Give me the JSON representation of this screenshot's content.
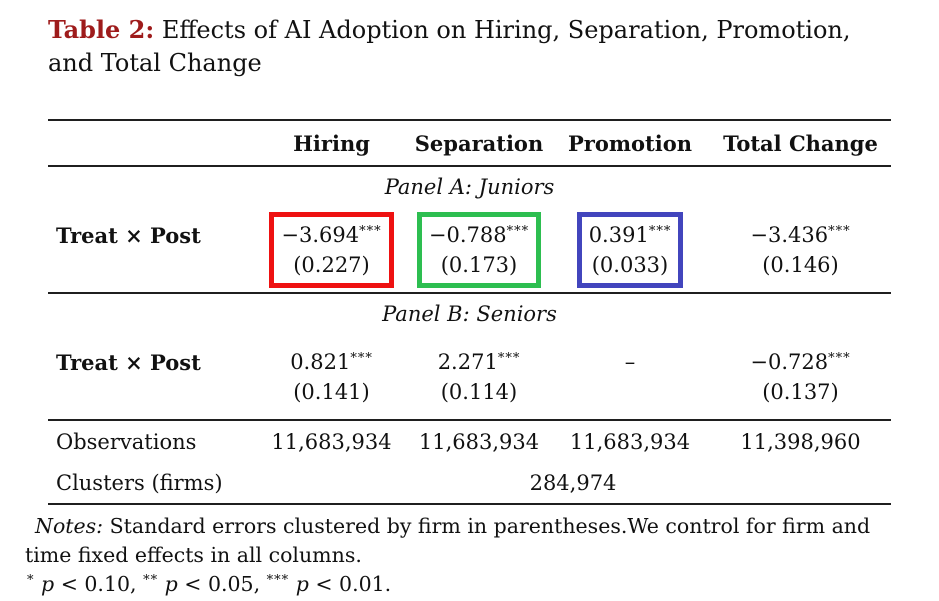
{
  "title": {
    "number": "Table 2:",
    "line1": "Effects of AI Adoption on Hiring, Separation, Promotion,",
    "line2": "and Total Change"
  },
  "table": {
    "column_headers": [
      "Hiring",
      "Separation",
      "Promotion",
      "Total Change"
    ],
    "panel_a": {
      "label": "Panel A: Juniors",
      "row_label": "Treat × Post",
      "cells": [
        {
          "value": "−3.694",
          "stars": "***",
          "se": "(0.227)"
        },
        {
          "value": "−0.788",
          "stars": "***",
          "se": "(0.173)"
        },
        {
          "value": "0.391",
          "stars": "***",
          "se": "(0.033)"
        },
        {
          "value": "−3.436",
          "stars": "***",
          "se": "(0.146)"
        }
      ],
      "highlights": [
        "red",
        "green",
        "blue",
        "none"
      ]
    },
    "panel_b": {
      "label": "Panel B: Seniors",
      "row_label": "Treat × Post",
      "cells": [
        {
          "value": "0.821",
          "stars": "***",
          "se": "(0.141)"
        },
        {
          "value": "2.271",
          "stars": "***",
          "se": "(0.114)"
        },
        {
          "value": "–",
          "stars": "",
          "se": ""
        },
        {
          "value": "−0.728",
          "stars": "***",
          "se": "(0.137)"
        }
      ]
    },
    "stats": {
      "observations_label": "Observations",
      "observations": [
        "11,683,934",
        "11,683,934",
        "11,683,934",
        "11,398,960"
      ],
      "clusters_label": "Clusters (firms)",
      "clusters_value": "284,974"
    }
  },
  "notes": {
    "label": "Notes:",
    "line1": "Standard errors clustered by firm in parentheses.We control for firm and",
    "line2": "time fixed effects in all columns.",
    "significance": [
      {
        "stars": "*",
        "p": "p",
        "threshold": "< 0.10,"
      },
      {
        "stars": "**",
        "p": "p",
        "threshold": "< 0.05,"
      },
      {
        "stars": "***",
        "p": "p",
        "threshold": "< 0.01."
      }
    ]
  },
  "colors": {
    "title_accent": "#9e1b1b",
    "box_red": "#ee1111",
    "box_green": "#2dbe50",
    "box_blue": "#4245bd",
    "rule": "#1f1f1f",
    "text": "#111111"
  }
}
